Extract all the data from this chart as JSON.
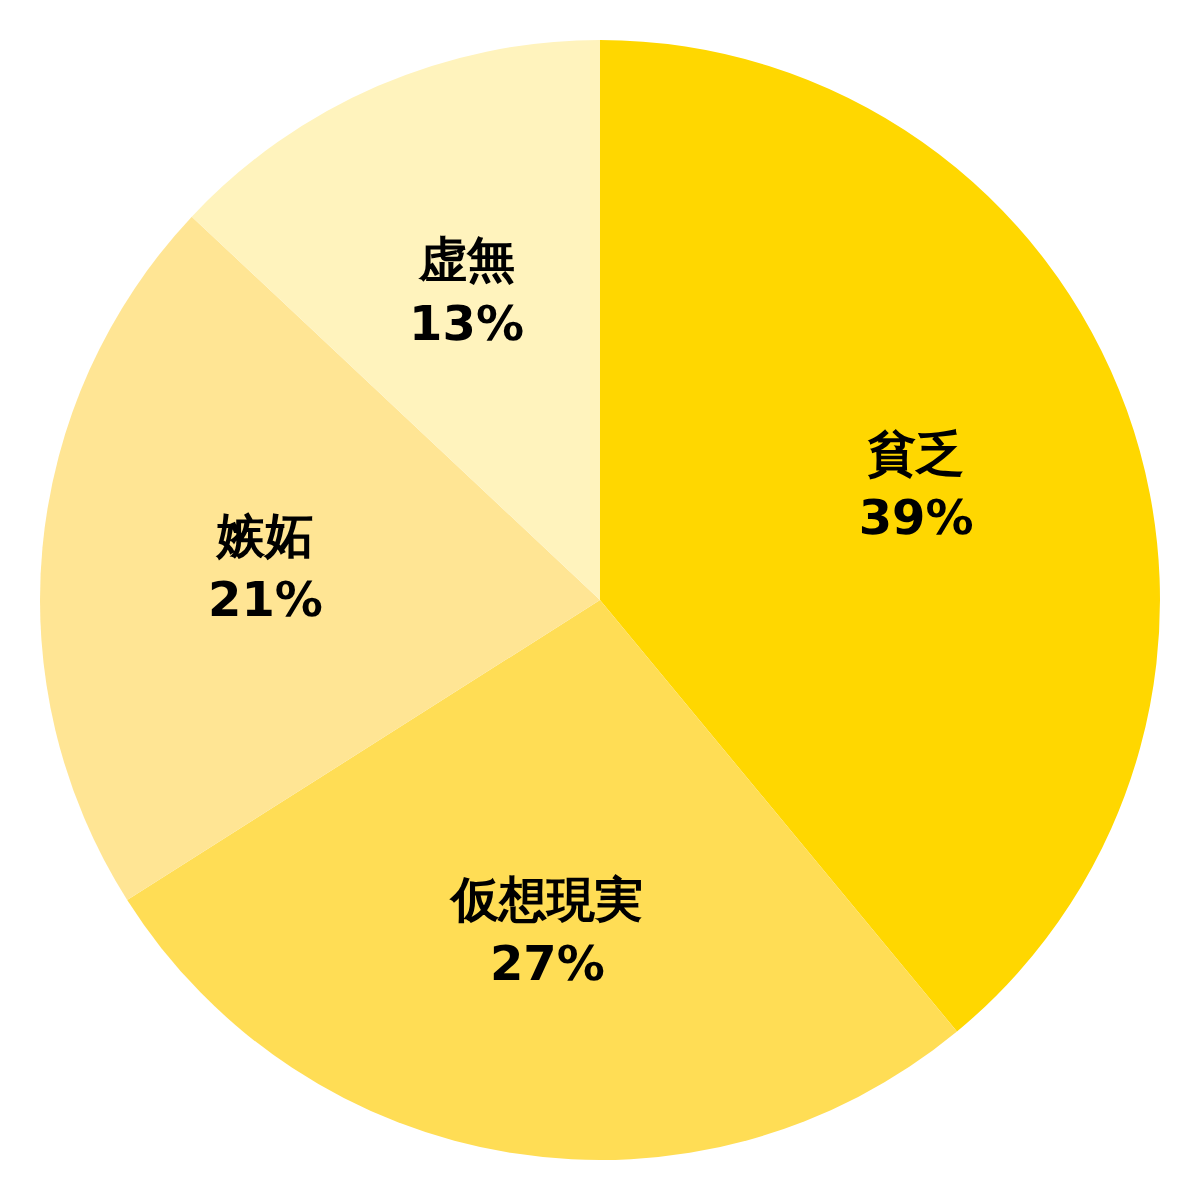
{
  "chart_data": {
    "type": "pie",
    "categories": [
      "貧乏",
      "仮想現実",
      "嫉妬",
      "虚無"
    ],
    "values": [
      39,
      27,
      21,
      13
    ],
    "colors": [
      "#ffd700",
      "#ffdd55",
      "#ffe594",
      "#fff3bd"
    ],
    "value_labels": [
      "39%",
      "27%",
      "21%",
      "13%"
    ]
  }
}
